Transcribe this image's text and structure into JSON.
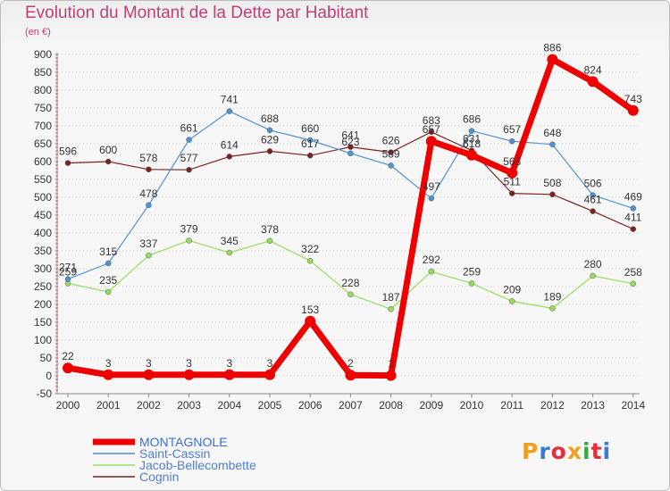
{
  "title": "Evolution du Montant de la Dette par Habitant",
  "subtitle": "(en €)",
  "logo": {
    "text": "Proxiti",
    "colors": [
      "#f0a020",
      "#3a7bd5",
      "#e03040",
      "#f0a020",
      "#3aa843",
      "#e03040",
      "#3a7bd5"
    ]
  },
  "chart_data": {
    "type": "line",
    "title": "Evolution du Montant de la Dette par Habitant",
    "subtitle": "(en €)",
    "xlabel": "",
    "ylabel": "",
    "ylim": [
      -50,
      900
    ],
    "yticks": [
      -50,
      0,
      50,
      100,
      150,
      200,
      250,
      300,
      350,
      400,
      450,
      500,
      550,
      600,
      650,
      700,
      750,
      800,
      850,
      900
    ],
    "grid": "horizontal dotted",
    "legend_position": "bottom-left",
    "x": [
      "2000",
      "2001",
      "2002",
      "2003",
      "2004",
      "2005",
      "2006",
      "2007",
      "2008",
      "2009",
      "2010",
      "2011",
      "2012",
      "2013",
      "2014"
    ],
    "series": [
      {
        "name": "MONTAGNOLE",
        "color": "#ee0000",
        "values": [
          22,
          3,
          3,
          3,
          3,
          3,
          153,
          2,
          1,
          657,
          618,
          568,
          886,
          824,
          743
        ]
      },
      {
        "name": "Saint-Cassin",
        "color": "#4e92d2",
        "values": [
          271,
          315,
          478,
          661,
          741,
          688,
          660,
          623,
          589,
          497,
          686,
          657,
          648,
          506,
          469
        ]
      },
      {
        "name": "Jacob-Bellecombette",
        "color": "#98dc5c",
        "values": [
          259,
          235,
          337,
          379,
          345,
          378,
          322,
          228,
          187,
          292,
          259,
          209,
          189,
          280,
          258
        ]
      },
      {
        "name": "Cognin",
        "color": "#7a2222",
        "values": [
          596,
          600,
          578,
          577,
          614,
          629,
          617,
          641,
          626,
          683,
          631,
          511,
          508,
          461,
          411
        ]
      }
    ]
  }
}
